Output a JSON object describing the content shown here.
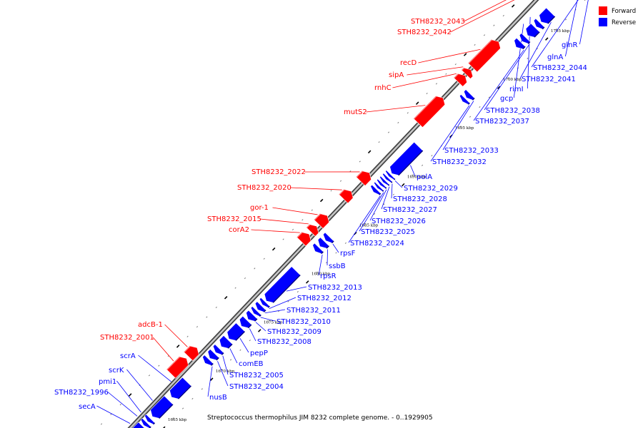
{
  "caption": "Streptococcus thermophilus JIM 8232 complete genome. - 0..1929905",
  "legend": [
    {
      "label": "Forward",
      "color": "#ff0000"
    },
    {
      "label": "Reverse",
      "color": "#0000ff"
    }
  ],
  "colors": {
    "forward": "#ff0000",
    "reverse": "#0000ff",
    "backbone": "#888888"
  },
  "kbp_marks": [
    {
      "label": "1665 kbp",
      "pos": 1665
    },
    {
      "label": "1670 kbp",
      "pos": 1670
    },
    {
      "label": "1675 kbp",
      "pos": 1675
    },
    {
      "label": "1680 kbp",
      "pos": 1680
    },
    {
      "label": "1685 kbp",
      "pos": 1685
    },
    {
      "label": "1690 kbp",
      "pos": 1690
    },
    {
      "label": "1695 kbp",
      "pos": 1695
    },
    {
      "label": "1700 kbp",
      "pos": 1700
    },
    {
      "label": "1705 kbp",
      "pos": 1705
    }
  ],
  "forward_genes": [
    {
      "name": "STH8232_2001",
      "start": 1668.2,
      "end": 1669.8
    },
    {
      "name": "adcB-1",
      "start": 1670.0,
      "end": 1670.9
    },
    {
      "name": "corA2",
      "start": 1681.8,
      "end": 1682.6
    },
    {
      "name": "STH8232_2015",
      "start": 1682.8,
      "end": 1683.4
    },
    {
      "name": "gor-1",
      "start": 1683.6,
      "end": 1684.5
    },
    {
      "name": "STH8232_2020",
      "start": 1686.2,
      "end": 1687.0
    },
    {
      "name": "STH8232_2022",
      "start": 1688.0,
      "end": 1688.9
    },
    {
      "name": "mutS2",
      "start": 1694.0,
      "end": 1696.6
    },
    {
      "name": "rnhC",
      "start": 1698.2,
      "end": 1698.9
    },
    {
      "name": "sipA",
      "start": 1699.0,
      "end": 1699.5
    },
    {
      "name": "recD",
      "start": 1699.7,
      "end": 1702.4
    },
    {
      "name": "STH8232_2042",
      "start": 1707.5,
      "end": 1707.8
    },
    {
      "name": "STH8232_2043",
      "start": 1708.0,
      "end": 1709.1
    }
  ],
  "reverse_genes": [
    {
      "name": "secA",
      "start": 1663.0,
      "end": 1664.0
    },
    {
      "name": "STH8232_1996",
      "start": 1664.1,
      "end": 1664.4
    },
    {
      "name": "pmi1",
      "start": 1664.5,
      "end": 1664.8
    },
    {
      "name": "scrK",
      "start": 1665.0,
      "end": 1666.7
    },
    {
      "name": "scrA",
      "start": 1667.0,
      "end": 1668.6
    },
    {
      "name": "nusB",
      "start": 1670.5,
      "end": 1670.9
    },
    {
      "name": "STH8232_2004",
      "start": 1671.0,
      "end": 1671.5
    },
    {
      "name": "STH8232_2005",
      "start": 1671.6,
      "end": 1672.0
    },
    {
      "name": "comEB",
      "start": 1672.2,
      "end": 1672.9
    },
    {
      "name": "pepP",
      "start": 1673.0,
      "end": 1674.2
    },
    {
      "name": "STH8232_2008",
      "start": 1674.3,
      "end": 1674.9
    },
    {
      "name": "STH8232_2009",
      "start": 1675.0,
      "end": 1675.5
    },
    {
      "name": "STH8232_2010",
      "start": 1675.6,
      "end": 1675.9
    },
    {
      "name": "STH8232_2011",
      "start": 1676.0,
      "end": 1676.4
    },
    {
      "name": "STH8232_2012",
      "start": 1676.5,
      "end": 1676.8
    },
    {
      "name": "STH8232_2013",
      "start": 1676.9,
      "end": 1680.0
    },
    {
      "name": "rpsR",
      "start": 1682.0,
      "end": 1682.4
    },
    {
      "name": "ssbB",
      "start": 1682.5,
      "end": 1683.0
    },
    {
      "name": "rpsF",
      "start": 1683.1,
      "end": 1683.5
    },
    {
      "name": "STH8232_2024",
      "start": 1688.1,
      "end": 1688.4
    },
    {
      "name": "STH8232_2025",
      "start": 1688.5,
      "end": 1688.7
    },
    {
      "name": "STH8232_2026",
      "start": 1688.8,
      "end": 1689.0
    },
    {
      "name": "STH8232_2027",
      "start": 1689.1,
      "end": 1689.3
    },
    {
      "name": "STH8232_2028",
      "start": 1689.4,
      "end": 1689.6
    },
    {
      "name": "STH8232_2029",
      "start": 1689.7,
      "end": 1689.9
    },
    {
      "name": "polA",
      "start": 1690.0,
      "end": 1692.8
    },
    {
      "name": "STH8232_2032",
      "start": 1697.4,
      "end": 1697.7
    },
    {
      "name": "STH8232_2033",
      "start": 1697.8,
      "end": 1698.2
    },
    {
      "name": "STH8232_2037",
      "start": 1703.0,
      "end": 1703.5
    },
    {
      "name": "STH8232_2038",
      "start": 1703.6,
      "end": 1704.0
    },
    {
      "name": "gcp",
      "start": 1704.2,
      "end": 1705.0
    },
    {
      "name": "rimI",
      "start": 1705.1,
      "end": 1705.5
    },
    {
      "name": "STH8232_2041",
      "start": 1705.6,
      "end": 1706.6
    },
    {
      "name": "STH8232_2044",
      "start": 1710.0,
      "end": 1710.4
    },
    {
      "name": "glnA",
      "start": 1710.5,
      "end": 1711.7
    },
    {
      "name": "glnR",
      "start": 1712.2,
      "end": 1712.6
    },
    {
      "name": "",
      "start": 1714.0,
      "end": 1714.8
    },
    {
      "name": "",
      "start": 1715.6,
      "end": 1716.2
    }
  ]
}
